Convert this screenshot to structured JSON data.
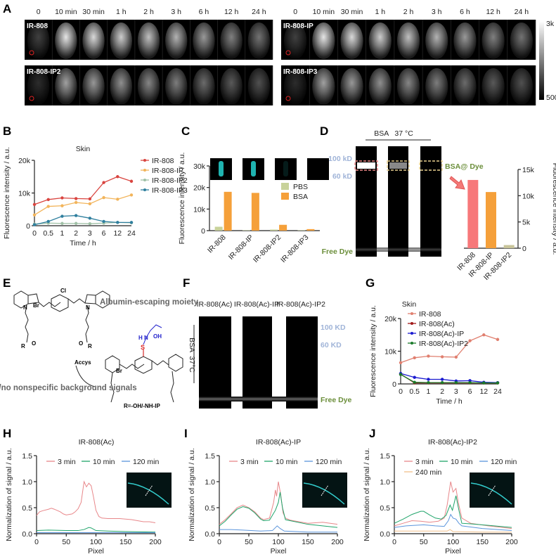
{
  "panel_labels": {
    "A": "A",
    "B": "B",
    "C": "C",
    "D": "D",
    "E": "E",
    "F": "F",
    "G": "G",
    "H": "H",
    "I": "I",
    "J": "J"
  },
  "panel_A": {
    "times": [
      "0",
      "10 min",
      "30 min",
      "1 h",
      "2 h",
      "3 h",
      "6 h",
      "12 h",
      "24 h"
    ],
    "left": {
      "top": "IR-808",
      "bottom": "IR-808-IP2"
    },
    "right": {
      "top": "IR-808-IP",
      "bottom": "IR-808-IP3"
    },
    "scale": {
      "max": "3k",
      "min": "500"
    }
  },
  "panel_D": {
    "header": "BSA   37 °C",
    "marker_100": "100 kD",
    "marker_60": "60 kD",
    "bsa_dye": "BSA@ Dye",
    "free_dye": "Free Dye"
  },
  "panel_E": {
    "title": "Albumin-escaping moiety",
    "subtitle": "Low/no nonspecific background signals",
    "reagent": "Accys",
    "r_group": "R=-OH/-NH-IP",
    "atoms": {
      "cl": "Cl",
      "br": "Br",
      "n": "N",
      "o": "O",
      "s": "S",
      "oh": "OH",
      "nh": "H N",
      "r": "R"
    }
  },
  "panel_F": {
    "lanes": [
      "IR-808(Ac)",
      "IR-808(Ac)-IP",
      "IR-808(Ac)-IP2"
    ],
    "side": "BSA  37°C",
    "marker_100": "100 KD",
    "marker_60": "60 KD",
    "free_dye": "Free Dye"
  },
  "chart_data": [
    {
      "id": "B",
      "type": "line",
      "title": "Skin",
      "xlabel": "Time / h",
      "ylabel": "Fluorescence intensity / a.u.",
      "categories": [
        "0",
        "0.5",
        "1",
        "2",
        "3",
        "6",
        "12",
        "24"
      ],
      "ylim": [
        0,
        20000
      ],
      "yticks": [
        0,
        10000,
        20000
      ],
      "ytick_labels": [
        "0",
        "10k",
        "20k"
      ],
      "legend": "right",
      "series": [
        {
          "name": "IR-808",
          "color": "#d9443f",
          "values": [
            6500,
            8000,
            8500,
            8300,
            8200,
            13200,
            15000,
            13600
          ]
        },
        {
          "name": "IR-808-IP",
          "color": "#f2b45a",
          "values": [
            3300,
            5900,
            6100,
            7100,
            6700,
            8600,
            8100,
            9400
          ]
        },
        {
          "name": "IR-808-IP2",
          "color": "#9fc0a6",
          "values": [
            500,
            800,
            700,
            700,
            600,
            800,
            1000,
            900
          ]
        },
        {
          "name": "IR-808-IP3",
          "color": "#2f7f9e",
          "values": [
            300,
            1300,
            2900,
            3100,
            2300,
            1300,
            1000,
            1000
          ]
        }
      ]
    },
    {
      "id": "C",
      "type": "bar",
      "ylabel": "Fluorescence intensity / a.u.",
      "categories": [
        "IR-808",
        "IR-808-IP",
        "IR-808-IP2",
        "IR-808-IP3"
      ],
      "ylim": [
        0,
        30000
      ],
      "yticks": [
        0,
        10000,
        20000,
        30000
      ],
      "ytick_labels": [
        "0",
        "10k",
        "20k",
        "30k"
      ],
      "legend": "right",
      "series": [
        {
          "name": "PBS",
          "color": "#c8d29a",
          "values": [
            1800,
            150,
            500,
            150
          ]
        },
        {
          "name": "BSA",
          "color": "#f5a03a",
          "values": [
            18000,
            17500,
            2700,
            700
          ]
        }
      ]
    },
    {
      "id": "D",
      "type": "bar",
      "ylabel": "Fluorescence intensity / a.u.",
      "categories": [
        "IR-808",
        "IR-808-IP",
        "IR-808-IP2"
      ],
      "ylim": [
        0,
        15000
      ],
      "yticks": [
        0,
        5000,
        10000,
        15000
      ],
      "ytick_labels": [
        "0",
        "5k",
        "10k",
        "15k"
      ],
      "axis_side": "right",
      "series": [
        {
          "values": [
            13000,
            10700,
            600
          ],
          "colors": [
            "#f7787a",
            "#f5a03a",
            "#c8c49a"
          ]
        }
      ]
    },
    {
      "id": "G",
      "type": "line",
      "title": "Skin",
      "xlabel": "Time / h",
      "ylabel": "Fluorescence intensity / a.u.",
      "categories": [
        "0",
        "0.5",
        "1",
        "2",
        "3",
        "6",
        "12",
        "24"
      ],
      "ylim": [
        0,
        20000
      ],
      "yticks": [
        0,
        10000,
        20000
      ],
      "ytick_labels": [
        "0",
        "10k",
        "20k"
      ],
      "legend": "right",
      "series": [
        {
          "name": "IR-808",
          "color": "#e07f6f",
          "values": [
            6500,
            8000,
            8500,
            8300,
            8200,
            13200,
            15000,
            13600
          ]
        },
        {
          "name": "IR-808(Ac)",
          "color": "#a01818",
          "values": [
            3000,
            300,
            300,
            300,
            300,
            300,
            300,
            300
          ]
        },
        {
          "name": "IR-808(Ac)-IP",
          "color": "#1a1ad0",
          "values": [
            3200,
            2000,
            1400,
            1400,
            900,
            1000,
            500,
            400
          ]
        },
        {
          "name": "IR-808(Ac)-IP2",
          "color": "#1a7a2a",
          "values": [
            2900,
            500,
            400,
            400,
            400,
            400,
            300,
            300
          ]
        }
      ]
    },
    {
      "id": "H",
      "type": "line",
      "title": "IR-808(Ac)",
      "xlabel": "Pixel",
      "ylabel": "Normalization of  signal / a.u.",
      "xlim": [
        0,
        200
      ],
      "ylim": [
        0,
        1.5
      ],
      "xticks": [
        0,
        50,
        100,
        150,
        200
      ],
      "yticks": [
        0,
        0.5,
        1.0,
        1.5
      ],
      "ytick_labels": [
        "0.0",
        "0.5",
        "1.0",
        "1.5"
      ],
      "legend": "top",
      "series": [
        {
          "name": "3 min",
          "color": "#e8878a",
          "x": [
            0,
            5,
            10,
            20,
            25,
            30,
            40,
            45,
            50,
            60,
            65,
            70,
            75,
            80,
            84,
            88,
            92,
            96,
            100,
            105,
            110,
            120,
            140,
            150,
            160,
            170,
            180,
            190,
            200
          ],
          "y": [
            0.35,
            0.42,
            0.44,
            0.47,
            0.49,
            0.47,
            0.42,
            0.38,
            0.36,
            0.38,
            0.42,
            0.48,
            0.6,
            1.0,
            0.9,
            0.97,
            0.92,
            0.7,
            0.45,
            0.33,
            0.3,
            0.29,
            0.29,
            0.28,
            0.27,
            0.25,
            0.23,
            0.23,
            0.21
          ]
        },
        {
          "name": "10 min",
          "color": "#1fa46a",
          "x": [
            0,
            20,
            50,
            70,
            80,
            88,
            92,
            100,
            120,
            150,
            200
          ],
          "y": [
            0.06,
            0.07,
            0.06,
            0.06,
            0.08,
            0.12,
            0.11,
            0.06,
            0.05,
            0.04,
            0.03
          ]
        },
        {
          "name": "120 min",
          "color": "#5b95dc",
          "x": [
            0,
            50,
            100,
            150,
            200
          ],
          "y": [
            0.02,
            0.02,
            0.02,
            0.02,
            0.02
          ]
        }
      ]
    },
    {
      "id": "I",
      "type": "line",
      "title": "IR-808(Ac)-IP",
      "xlabel": "Pixel",
      "ylabel": "Normalization of  signal / a.u.",
      "xlim": [
        0,
        200
      ],
      "ylim": [
        0,
        1.5
      ],
      "xticks": [
        0,
        50,
        100,
        150,
        200
      ],
      "yticks": [
        0,
        0.5,
        1.0,
        1.5
      ],
      "ytick_labels": [
        "0.0",
        "0.5",
        "1.0",
        "1.5"
      ],
      "legend": "top",
      "series": [
        {
          "name": "3 min",
          "color": "#e8878a",
          "x": [
            0,
            10,
            20,
            30,
            40,
            50,
            60,
            70,
            75,
            85,
            92,
            95,
            97,
            100,
            104,
            108,
            112,
            120,
            150,
            175,
            200
          ],
          "y": [
            0.18,
            0.27,
            0.38,
            0.5,
            0.55,
            0.5,
            0.42,
            0.3,
            0.27,
            0.3,
            0.6,
            0.84,
            0.72,
            1.0,
            0.75,
            0.4,
            0.3,
            0.26,
            0.2,
            0.22,
            0.18
          ]
        },
        {
          "name": "10 min",
          "color": "#1fa46a",
          "x": [
            0,
            10,
            20,
            30,
            40,
            50,
            60,
            70,
            75,
            85,
            95,
            100,
            103,
            107,
            112,
            120,
            150,
            200
          ],
          "y": [
            0.15,
            0.24,
            0.36,
            0.47,
            0.52,
            0.49,
            0.4,
            0.28,
            0.25,
            0.26,
            0.45,
            0.6,
            0.8,
            0.5,
            0.27,
            0.25,
            0.18,
            0.12
          ]
        },
        {
          "name": "120 min",
          "color": "#5b95dc",
          "x": [
            0,
            20,
            40,
            70,
            90,
            98,
            103,
            110,
            150,
            200
          ],
          "y": [
            0.08,
            0.08,
            0.07,
            0.05,
            0.06,
            0.15,
            0.1,
            0.05,
            0.03,
            0.03
          ]
        }
      ]
    },
    {
      "id": "J",
      "type": "line",
      "title": "IR-808(Ac)-IP2",
      "xlabel": "Pixel",
      "ylabel": "Normalization of  signal / a.u.",
      "xlim": [
        0,
        200
      ],
      "ylim": [
        0,
        1.5
      ],
      "xticks": [
        0,
        50,
        100,
        150,
        200
      ],
      "yticks": [
        0,
        0.5,
        1.0,
        1.5
      ],
      "ytick_labels": [
        "0.0",
        "0.5",
        "1.0",
        "1.5"
      ],
      "legend": "top",
      "series": [
        {
          "name": "3 min",
          "color": "#e8878a",
          "x": [
            0,
            15,
            30,
            45,
            60,
            75,
            85,
            90,
            96,
            100,
            105,
            109,
            115,
            130,
            160,
            200
          ],
          "y": [
            0.15,
            0.2,
            0.25,
            0.24,
            0.22,
            0.24,
            0.3,
            0.55,
            1.0,
            0.8,
            0.87,
            0.6,
            0.3,
            0.2,
            0.15,
            0.1
          ]
        },
        {
          "name": "10 min",
          "color": "#1fa46a",
          "x": [
            0,
            15,
            30,
            45,
            50,
            60,
            70,
            80,
            88,
            95,
            99,
            105,
            110,
            115,
            130,
            160,
            200
          ],
          "y": [
            0.2,
            0.28,
            0.37,
            0.43,
            0.43,
            0.36,
            0.3,
            0.28,
            0.35,
            0.55,
            0.45,
            0.73,
            0.45,
            0.2,
            0.19,
            0.16,
            0.12
          ]
        },
        {
          "name": "120 min",
          "color": "#5b95dc",
          "x": [
            0,
            20,
            50,
            70,
            85,
            92,
            96,
            100,
            105,
            110,
            115,
            150,
            200
          ],
          "y": [
            0.12,
            0.15,
            0.17,
            0.15,
            0.14,
            0.25,
            0.37,
            0.3,
            0.28,
            0.2,
            0.15,
            0.1,
            0.06
          ]
        },
        {
          "name": "240 min",
          "color": "#f1c08a",
          "x": [
            0,
            50,
            90,
            95,
            100,
            150,
            200
          ],
          "y": [
            0.05,
            0.05,
            0.05,
            0.08,
            0.04,
            0.03,
            0.03
          ]
        }
      ]
    }
  ]
}
